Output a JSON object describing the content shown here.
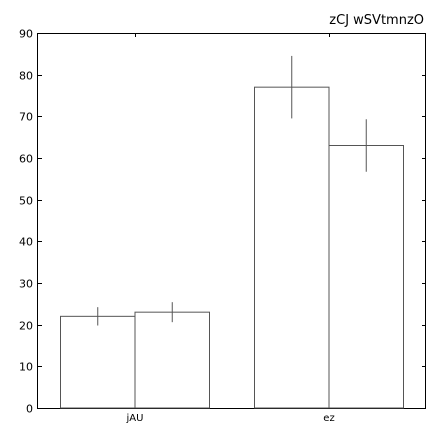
{
  "chart_data": {
    "type": "bar",
    "title": "zCJ wSVtmnzO",
    "xlabel": "",
    "ylabel": "",
    "categories": [
      "jAU",
      "ez"
    ],
    "series": [
      {
        "values": [
          22,
          77
        ],
        "errors": [
          2.2,
          7.5
        ]
      },
      {
        "values": [
          23,
          63
        ],
        "errors": [
          2.4,
          6.3
        ]
      }
    ],
    "ylim": [
      0,
      90
    ],
    "yticks": [
      "0",
      "10",
      "20",
      "30",
      "40",
      "50",
      "60",
      "70",
      "80",
      "90"
    ],
    "grid": false,
    "bar_fill": "#ffffff",
    "bar_stroke": "#555555"
  }
}
